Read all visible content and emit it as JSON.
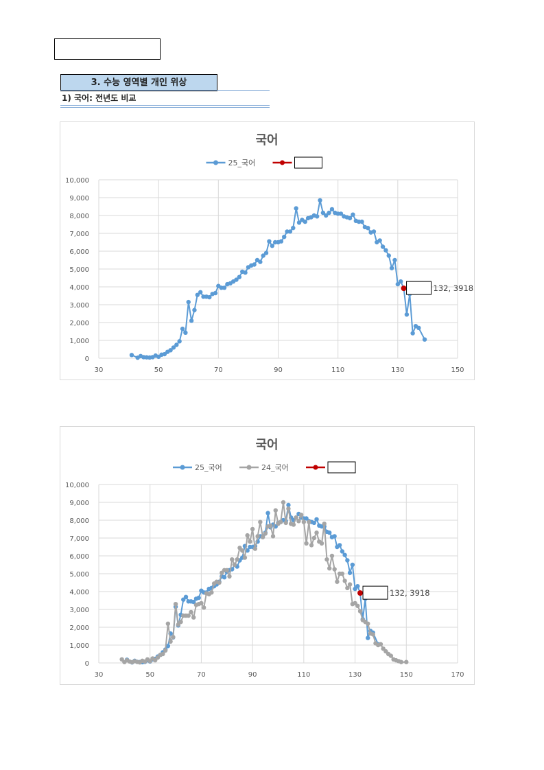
{
  "header": {
    "section_title": "3. 수능 영역별 개인 위상",
    "subsection_title": "1) 국어: 전년도 비교"
  },
  "chart_data": [
    {
      "type": "line",
      "title": "국어",
      "xlabel": "",
      "ylabel": "",
      "xlim": [
        30,
        150
      ],
      "ylim": [
        0,
        10000
      ],
      "xticks": [
        30,
        50,
        70,
        90,
        110,
        130,
        150
      ],
      "yticks": [
        0,
        1000,
        2000,
        3000,
        4000,
        5000,
        6000,
        7000,
        8000,
        9000,
        10000
      ],
      "ytick_labels": [
        "0",
        "1,000",
        "2,000",
        "3,000",
        "4,000",
        "5,000",
        "6,000",
        "7,000",
        "8,000",
        "9,000",
        "10,000"
      ],
      "grid": true,
      "legend_position": "top",
      "series": [
        {
          "name": "25_국어",
          "color": "#5b9bd5",
          "x": [
            41,
            43,
            44,
            45,
            46,
            47,
            48,
            49,
            50,
            51,
            52,
            53,
            54,
            55,
            56,
            57,
            58,
            59,
            60,
            61,
            62,
            63,
            64,
            65,
            66,
            67,
            68,
            69,
            70,
            71,
            72,
            73,
            74,
            75,
            76,
            77,
            78,
            79,
            80,
            81,
            82,
            83,
            84,
            85,
            86,
            87,
            88,
            89,
            90,
            91,
            92,
            93,
            94,
            95,
            96,
            97,
            98,
            99,
            100,
            101,
            102,
            103,
            104,
            105,
            106,
            107,
            108,
            109,
            110,
            111,
            112,
            113,
            114,
            115,
            116,
            117,
            118,
            119,
            120,
            121,
            122,
            123,
            124,
            125,
            126,
            127,
            128,
            129,
            130,
            131,
            132,
            133,
            134,
            135,
            136,
            137,
            139
          ],
          "y": [
            180,
            30,
            120,
            60,
            50,
            40,
            60,
            150,
            80,
            200,
            230,
            360,
            450,
            600,
            750,
            950,
            1650,
            1430,
            3150,
            2100,
            2700,
            3550,
            3700,
            3450,
            3450,
            3420,
            3600,
            3650,
            4050,
            3950,
            3950,
            4150,
            4200,
            4300,
            4400,
            4550,
            4850,
            4800,
            5100,
            5200,
            5250,
            5500,
            5400,
            5750,
            5900,
            6550,
            6300,
            6500,
            6500,
            6550,
            6800,
            7100,
            7100,
            7300,
            8400,
            7600,
            7750,
            7650,
            7850,
            7900,
            8000,
            7950,
            8850,
            8150,
            8000,
            8150,
            8350,
            8150,
            8100,
            8100,
            7950,
            7900,
            7850,
            8050,
            7700,
            7650,
            7650,
            7350,
            7300,
            7050,
            7100,
            6500,
            6600,
            6250,
            6050,
            5750,
            5050,
            5500,
            4150,
            4300,
            3918,
            2450,
            3600,
            1400,
            1800,
            1700,
            1050
          ]
        },
        {
          "name": "",
          "color": "#c00000",
          "x": [
            132
          ],
          "y": [
            3918
          ]
        }
      ],
      "annotations": [
        {
          "x": 132,
          "y": 3918,
          "text": "132, 3918"
        }
      ]
    },
    {
      "type": "line",
      "title": "국어",
      "xlabel": "",
      "ylabel": "",
      "xlim": [
        30,
        170
      ],
      "ylim": [
        0,
        10000
      ],
      "xticks": [
        30,
        50,
        70,
        90,
        110,
        130,
        150,
        170
      ],
      "yticks": [
        0,
        1000,
        2000,
        3000,
        4000,
        5000,
        6000,
        7000,
        8000,
        9000,
        10000
      ],
      "ytick_labels": [
        "0",
        "1,000",
        "2,000",
        "3,000",
        "4,000",
        "5,000",
        "6,000",
        "7,000",
        "8,000",
        "9,000",
        "10,000"
      ],
      "grid": true,
      "legend_position": "top",
      "series": [
        {
          "name": "25_국어",
          "color": "#5b9bd5",
          "x": [
            41,
            43,
            44,
            45,
            46,
            47,
            48,
            49,
            50,
            51,
            52,
            53,
            54,
            55,
            56,
            57,
            58,
            59,
            60,
            61,
            62,
            63,
            64,
            65,
            66,
            67,
            68,
            69,
            70,
            71,
            72,
            73,
            74,
            75,
            76,
            77,
            78,
            79,
            80,
            81,
            82,
            83,
            84,
            85,
            86,
            87,
            88,
            89,
            90,
            91,
            92,
            93,
            94,
            95,
            96,
            97,
            98,
            99,
            100,
            101,
            102,
            103,
            104,
            105,
            106,
            107,
            108,
            109,
            110,
            111,
            112,
            113,
            114,
            115,
            116,
            117,
            118,
            119,
            120,
            121,
            122,
            123,
            124,
            125,
            126,
            127,
            128,
            129,
            130,
            131,
            132,
            133,
            134,
            135,
            136,
            137,
            139
          ],
          "y": [
            180,
            30,
            120,
            60,
            50,
            40,
            60,
            150,
            80,
            200,
            230,
            360,
            450,
            600,
            750,
            950,
            1650,
            1430,
            3150,
            2100,
            2700,
            3550,
            3700,
            3450,
            3450,
            3420,
            3600,
            3650,
            4050,
            3950,
            3950,
            4150,
            4200,
            4300,
            4400,
            4550,
            4850,
            4800,
            5100,
            5200,
            5250,
            5500,
            5400,
            5750,
            5900,
            6550,
            6300,
            6500,
            6500,
            6550,
            6800,
            7100,
            7100,
            7300,
            8400,
            7600,
            7750,
            7650,
            7850,
            7900,
            8000,
            7950,
            8850,
            8150,
            8000,
            8150,
            8350,
            8150,
            8100,
            8100,
            7950,
            7900,
            7850,
            8050,
            7700,
            7650,
            7650,
            7350,
            7300,
            7050,
            7100,
            6500,
            6600,
            6250,
            6050,
            5750,
            5050,
            5500,
            4150,
            4300,
            3918,
            2450,
            3600,
            1400,
            1800,
            1700,
            1050
          ]
        },
        {
          "name": "24_국어",
          "color": "#a5a5a5",
          "x": [
            39,
            40,
            41,
            42,
            43,
            44,
            45,
            46,
            47,
            48,
            49,
            50,
            51,
            52,
            53,
            54,
            55,
            56,
            57,
            58,
            59,
            60,
            61,
            62,
            63,
            64,
            65,
            66,
            67,
            68,
            69,
            70,
            71,
            72,
            73,
            74,
            75,
            76,
            77,
            78,
            79,
            80,
            81,
            82,
            83,
            84,
            85,
            86,
            87,
            88,
            89,
            90,
            91,
            92,
            93,
            94,
            95,
            96,
            97,
            98,
            99,
            100,
            101,
            102,
            103,
            104,
            105,
            106,
            107,
            108,
            109,
            110,
            111,
            112,
            113,
            114,
            115,
            116,
            117,
            118,
            119,
            120,
            121,
            122,
            123,
            124,
            125,
            126,
            127,
            128,
            129,
            130,
            131,
            132,
            133,
            134,
            135,
            136,
            137,
            138,
            139,
            140,
            141,
            142,
            143,
            144,
            145,
            146,
            147,
            148,
            150
          ],
          "y": [
            200,
            50,
            150,
            80,
            40,
            100,
            60,
            30,
            120,
            80,
            200,
            100,
            250,
            150,
            300,
            450,
            500,
            700,
            2200,
            1200,
            1450,
            3300,
            2150,
            2300,
            2650,
            2650,
            2650,
            2850,
            2550,
            3250,
            3300,
            3350,
            3100,
            3900,
            3850,
            3950,
            4450,
            4550,
            4500,
            5050,
            5200,
            5200,
            4850,
            5800,
            5500,
            5800,
            6450,
            6300,
            5900,
            7150,
            6800,
            7500,
            6400,
            7100,
            7900,
            7050,
            7250,
            7650,
            7700,
            7100,
            8550,
            7800,
            7900,
            9000,
            7850,
            8650,
            7800,
            7750,
            8150,
            7950,
            8300,
            7900,
            6700,
            7900,
            6600,
            7000,
            7300,
            6800,
            6700,
            7800,
            5800,
            5300,
            6000,
            5250,
            4550,
            5000,
            5000,
            4600,
            4200,
            4400,
            3300,
            3350,
            3200,
            2900,
            2400,
            2300,
            2200,
            1650,
            1600,
            1100,
            1000,
            1050,
            800,
            650,
            500,
            400,
            200,
            150,
            100,
            50,
            50
          ]
        },
        {
          "name": "",
          "color": "#c00000",
          "x": [
            132
          ],
          "y": [
            3918
          ]
        }
      ],
      "annotations": [
        {
          "x": 132,
          "y": 3918,
          "text": "132, 3918"
        }
      ]
    }
  ]
}
